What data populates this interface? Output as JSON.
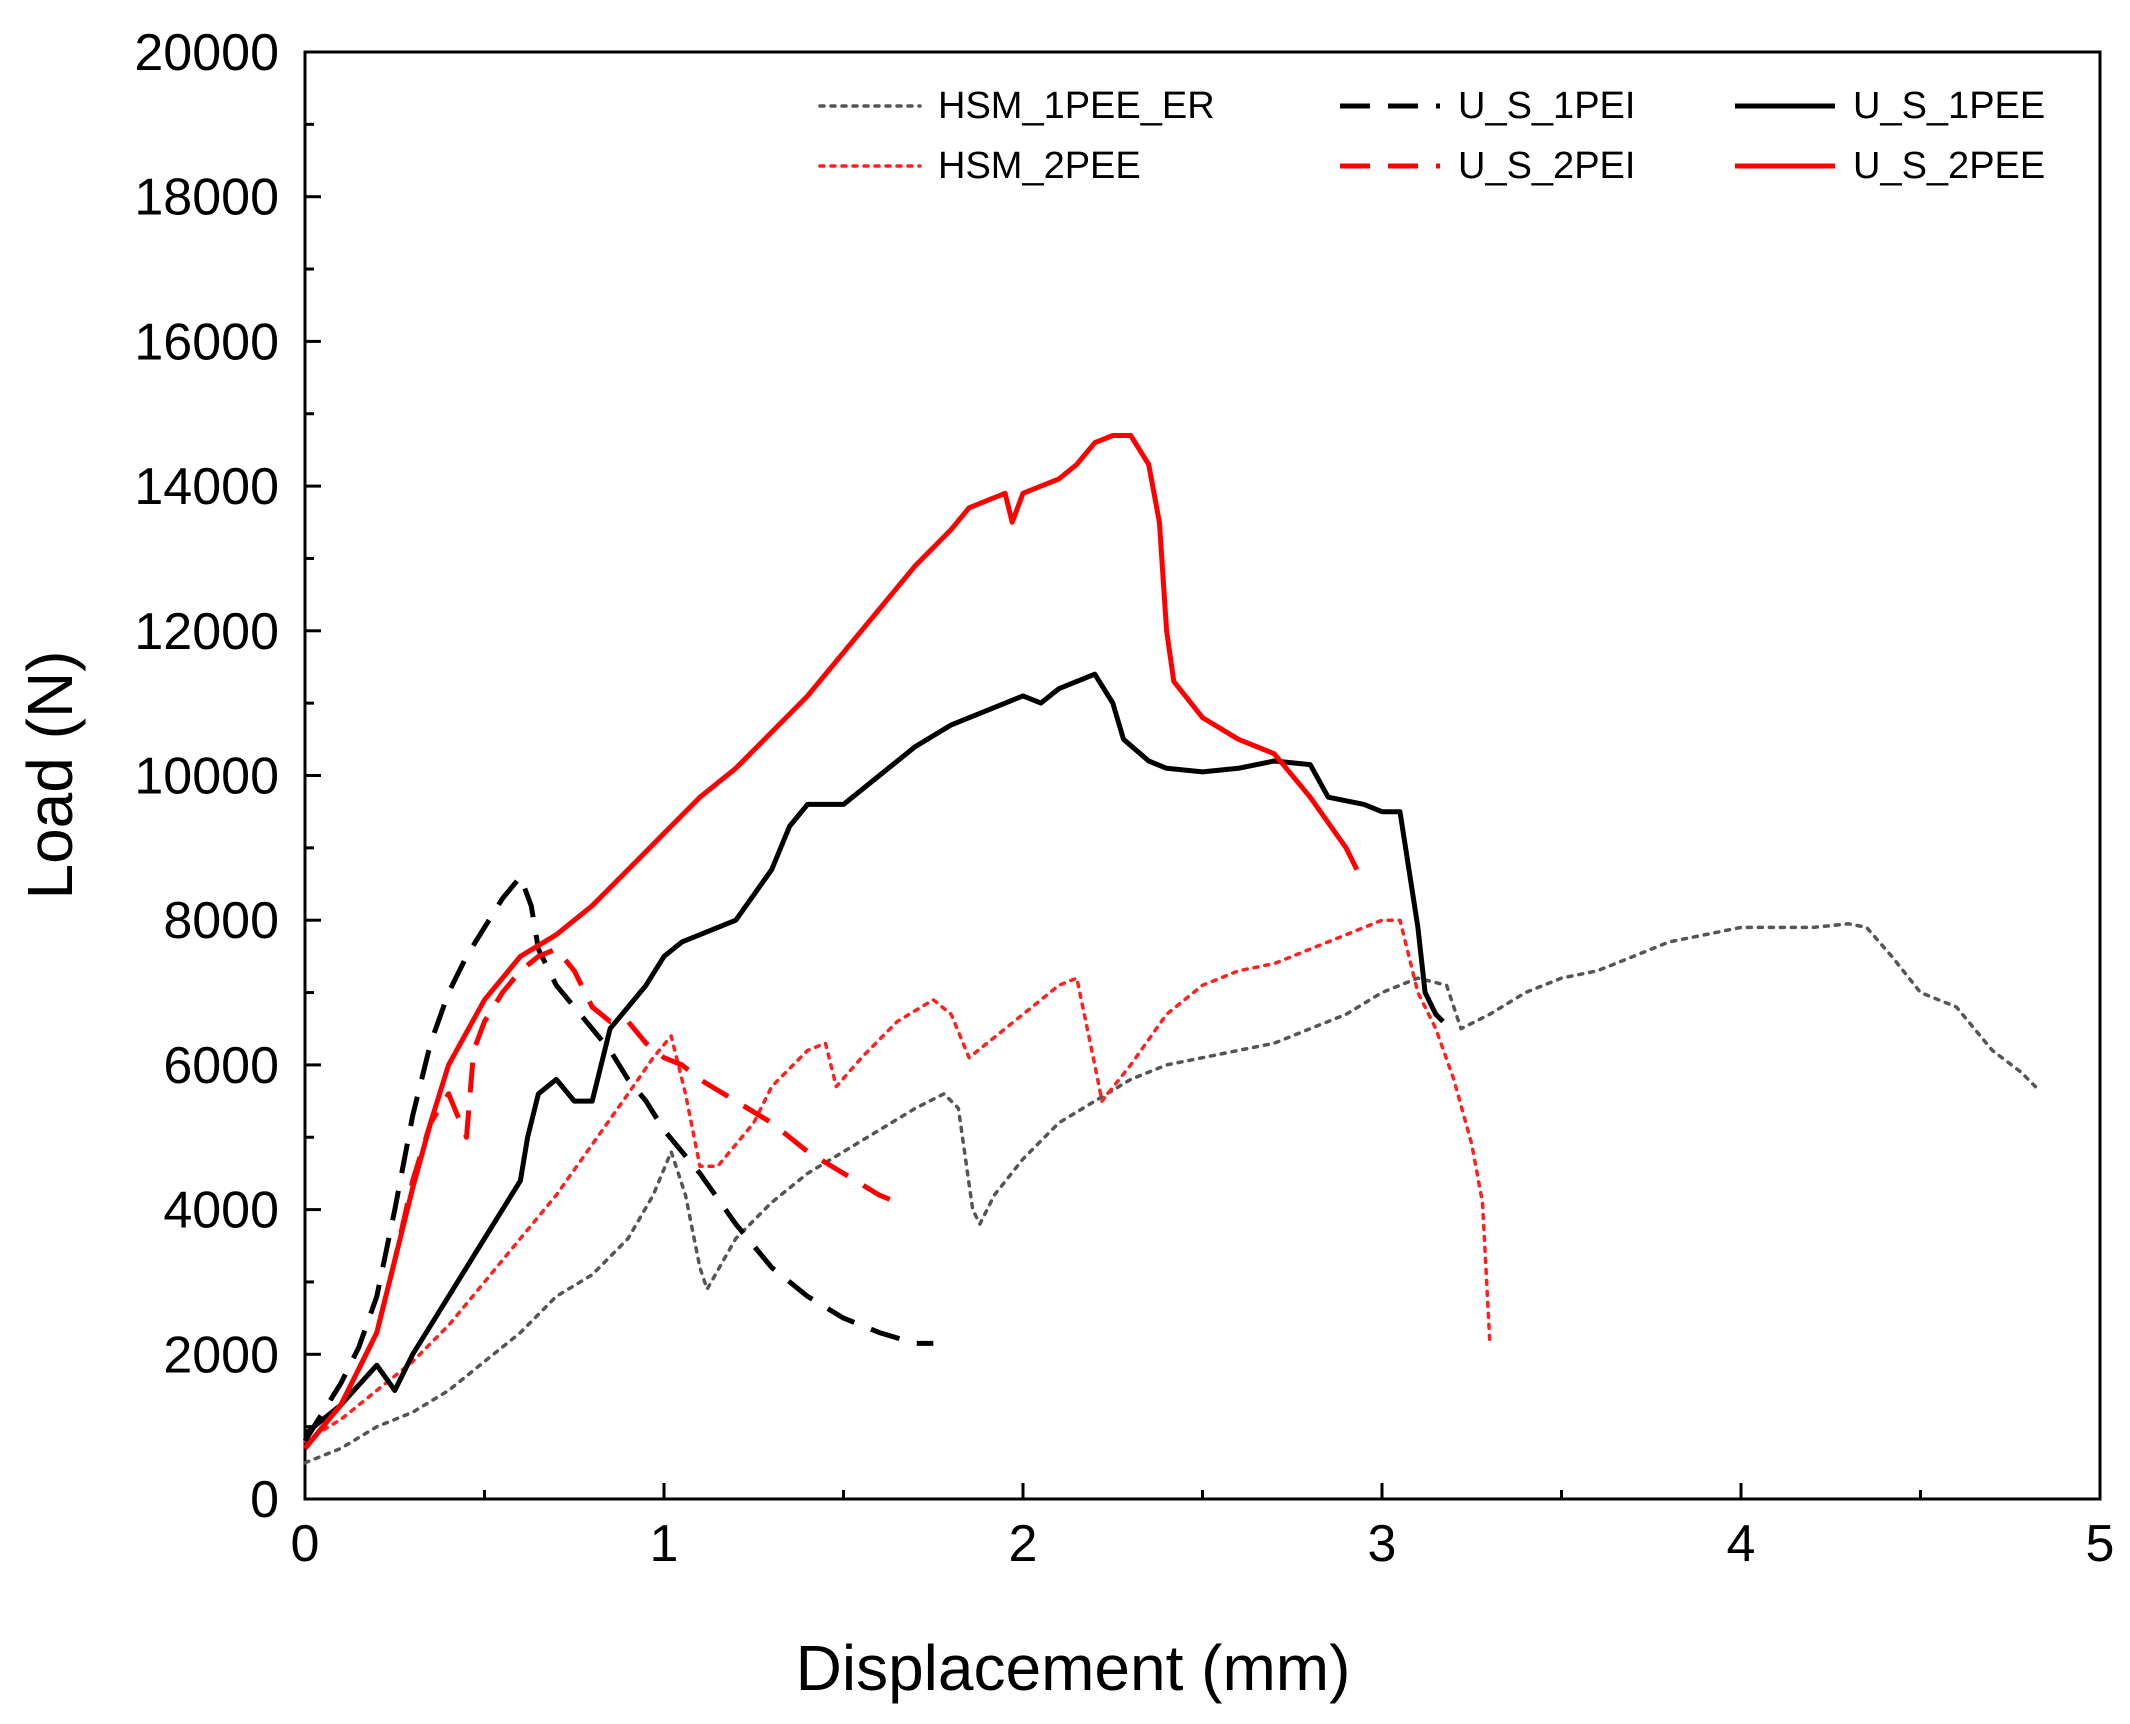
{
  "chart_data": {
    "type": "line",
    "title": "",
    "xlabel": "Displacement (mm)",
    "ylabel": "Load (N)",
    "xlim": [
      0,
      5
    ],
    "ylim": [
      0,
      20000
    ],
    "x_ticks": [
      0,
      1,
      2,
      3,
      4,
      5
    ],
    "y_ticks": [
      0,
      2000,
      4000,
      6000,
      8000,
      10000,
      12000,
      14000,
      16000,
      18000,
      20000
    ],
    "x_tick_labels": [
      "0",
      "1",
      "2",
      "3",
      "4",
      "5"
    ],
    "y_tick_labels": [
      "0",
      "2000",
      "4000",
      "6000",
      "8000",
      "10000",
      "12000",
      "14000",
      "16000",
      "18000",
      "20000"
    ],
    "grid": false,
    "legend_position": "top-right",
    "series": [
      {
        "name": "HSM_1PEE_ER",
        "color": "#555555",
        "dash": "dotted",
        "points": [
          [
            0,
            500
          ],
          [
            0.1,
            700
          ],
          [
            0.2,
            1000
          ],
          [
            0.3,
            1200
          ],
          [
            0.4,
            1500
          ],
          [
            0.5,
            1900
          ],
          [
            0.6,
            2300
          ],
          [
            0.7,
            2800
          ],
          [
            0.8,
            3100
          ],
          [
            0.9,
            3600
          ],
          [
            0.97,
            4200
          ],
          [
            1.02,
            4800
          ],
          [
            1.06,
            4200
          ],
          [
            1.1,
            3200
          ],
          [
            1.12,
            2900
          ],
          [
            1.2,
            3600
          ],
          [
            1.3,
            4100
          ],
          [
            1.4,
            4500
          ],
          [
            1.5,
            4800
          ],
          [
            1.6,
            5100
          ],
          [
            1.7,
            5400
          ],
          [
            1.78,
            5600
          ],
          [
            1.82,
            5400
          ],
          [
            1.86,
            4000
          ],
          [
            1.88,
            3800
          ],
          [
            1.92,
            4200
          ],
          [
            2.0,
            4700
          ],
          [
            2.1,
            5200
          ],
          [
            2.2,
            5500
          ],
          [
            2.3,
            5800
          ],
          [
            2.4,
            6000
          ],
          [
            2.5,
            6100
          ],
          [
            2.6,
            6200
          ],
          [
            2.7,
            6300
          ],
          [
            2.8,
            6500
          ],
          [
            2.9,
            6700
          ],
          [
            3.0,
            7000
          ],
          [
            3.1,
            7200
          ],
          [
            3.18,
            7100
          ],
          [
            3.22,
            6500
          ],
          [
            3.3,
            6700
          ],
          [
            3.4,
            7000
          ],
          [
            3.5,
            7200
          ],
          [
            3.6,
            7300
          ],
          [
            3.7,
            7500
          ],
          [
            3.8,
            7700
          ],
          [
            3.9,
            7800
          ],
          [
            4.0,
            7900
          ],
          [
            4.1,
            7900
          ],
          [
            4.2,
            7900
          ],
          [
            4.3,
            7950
          ],
          [
            4.35,
            7900
          ],
          [
            4.42,
            7500
          ],
          [
            4.5,
            7000
          ],
          [
            4.6,
            6800
          ],
          [
            4.7,
            6200
          ],
          [
            4.78,
            5900
          ],
          [
            4.82,
            5700
          ]
        ]
      },
      {
        "name": "HSM_2PEE",
        "color": "#ff2020",
        "dash": "dotted",
        "points": [
          [
            0,
            800
          ],
          [
            0.1,
            1100
          ],
          [
            0.2,
            1500
          ],
          [
            0.3,
            1900
          ],
          [
            0.4,
            2400
          ],
          [
            0.5,
            3000
          ],
          [
            0.6,
            3600
          ],
          [
            0.7,
            4200
          ],
          [
            0.8,
            4900
          ],
          [
            0.9,
            5600
          ],
          [
            0.97,
            6100
          ],
          [
            1.02,
            6400
          ],
          [
            1.06,
            5600
          ],
          [
            1.1,
            4600
          ],
          [
            1.15,
            4600
          ],
          [
            1.25,
            5200
          ],
          [
            1.3,
            5700
          ],
          [
            1.4,
            6200
          ],
          [
            1.45,
            6300
          ],
          [
            1.48,
            5700
          ],
          [
            1.55,
            6100
          ],
          [
            1.65,
            6600
          ],
          [
            1.75,
            6900
          ],
          [
            1.8,
            6700
          ],
          [
            1.85,
            6100
          ],
          [
            1.9,
            6300
          ],
          [
            2.0,
            6700
          ],
          [
            2.1,
            7100
          ],
          [
            2.15,
            7200
          ],
          [
            2.2,
            6000
          ],
          [
            2.22,
            5500
          ],
          [
            2.3,
            6000
          ],
          [
            2.4,
            6700
          ],
          [
            2.5,
            7100
          ],
          [
            2.6,
            7300
          ],
          [
            2.7,
            7400
          ],
          [
            2.8,
            7600
          ],
          [
            2.9,
            7800
          ],
          [
            3.0,
            8000
          ],
          [
            3.05,
            8000
          ],
          [
            3.1,
            7000
          ],
          [
            3.15,
            6500
          ],
          [
            3.2,
            5800
          ],
          [
            3.25,
            4900
          ],
          [
            3.28,
            4100
          ],
          [
            3.3,
            2200
          ]
        ]
      },
      {
        "name": "U_S_1PEI",
        "color": "#000000",
        "dash": "dashed",
        "points": [
          [
            0,
            800
          ],
          [
            0.05,
            1200
          ],
          [
            0.1,
            1600
          ],
          [
            0.15,
            2100
          ],
          [
            0.2,
            2800
          ],
          [
            0.25,
            4000
          ],
          [
            0.3,
            5300
          ],
          [
            0.35,
            6300
          ],
          [
            0.4,
            7000
          ],
          [
            0.45,
            7500
          ],
          [
            0.5,
            7900
          ],
          [
            0.55,
            8300
          ],
          [
            0.6,
            8600
          ],
          [
            0.63,
            8200
          ],
          [
            0.65,
            7600
          ],
          [
            0.7,
            7100
          ],
          [
            0.75,
            6800
          ],
          [
            0.8,
            6500
          ],
          [
            0.85,
            6200
          ],
          [
            0.9,
            5800
          ],
          [
            0.95,
            5500
          ],
          [
            1.0,
            5100
          ],
          [
            1.1,
            4500
          ],
          [
            1.2,
            3800
          ],
          [
            1.3,
            3200
          ],
          [
            1.4,
            2800
          ],
          [
            1.5,
            2500
          ],
          [
            1.6,
            2300
          ],
          [
            1.7,
            2150
          ],
          [
            1.75,
            2150
          ]
        ]
      },
      {
        "name": "U_S_2PEI",
        "color": "#ff0000",
        "dash": "dashed",
        "points": [
          [
            0,
            700
          ],
          [
            0.05,
            1000
          ],
          [
            0.1,
            1300
          ],
          [
            0.15,
            1800
          ],
          [
            0.2,
            2300
          ],
          [
            0.25,
            3300
          ],
          [
            0.3,
            4400
          ],
          [
            0.35,
            5200
          ],
          [
            0.4,
            5600
          ],
          [
            0.45,
            5000
          ],
          [
            0.47,
            6200
          ],
          [
            0.5,
            6600
          ],
          [
            0.55,
            7000
          ],
          [
            0.6,
            7300
          ],
          [
            0.65,
            7500
          ],
          [
            0.7,
            7600
          ],
          [
            0.75,
            7300
          ],
          [
            0.8,
            6800
          ],
          [
            0.85,
            6600
          ],
          [
            0.9,
            6600
          ],
          [
            0.95,
            6300
          ],
          [
            1.0,
            6100
          ],
          [
            1.05,
            6000
          ],
          [
            1.1,
            5800
          ],
          [
            1.2,
            5500
          ],
          [
            1.3,
            5200
          ],
          [
            1.4,
            4800
          ],
          [
            1.5,
            4500
          ],
          [
            1.6,
            4200
          ],
          [
            1.65,
            4100
          ]
        ]
      },
      {
        "name": "U_S_1PEE",
        "color": "#000000",
        "dash": "solid",
        "points": [
          [
            0,
            900
          ],
          [
            0.1,
            1300
          ],
          [
            0.2,
            1850
          ],
          [
            0.25,
            1500
          ],
          [
            0.3,
            2000
          ],
          [
            0.4,
            2800
          ],
          [
            0.5,
            3600
          ],
          [
            0.6,
            4400
          ],
          [
            0.62,
            5000
          ],
          [
            0.65,
            5600
          ],
          [
            0.7,
            5800
          ],
          [
            0.75,
            5500
          ],
          [
            0.8,
            5500
          ],
          [
            0.85,
            6500
          ],
          [
            0.9,
            6800
          ],
          [
            0.95,
            7100
          ],
          [
            1.0,
            7500
          ],
          [
            1.05,
            7700
          ],
          [
            1.1,
            7800
          ],
          [
            1.2,
            8000
          ],
          [
            1.3,
            8700
          ],
          [
            1.35,
            9300
          ],
          [
            1.4,
            9600
          ],
          [
            1.5,
            9600
          ],
          [
            1.6,
            10000
          ],
          [
            1.7,
            10400
          ],
          [
            1.8,
            10700
          ],
          [
            1.9,
            10900
          ],
          [
            2.0,
            11100
          ],
          [
            2.05,
            11000
          ],
          [
            2.1,
            11200
          ],
          [
            2.15,
            11300
          ],
          [
            2.2,
            11400
          ],
          [
            2.25,
            11000
          ],
          [
            2.28,
            10500
          ],
          [
            2.35,
            10200
          ],
          [
            2.4,
            10100
          ],
          [
            2.5,
            10050
          ],
          [
            2.6,
            10100
          ],
          [
            2.7,
            10200
          ],
          [
            2.8,
            10150
          ],
          [
            2.85,
            9700
          ],
          [
            2.95,
            9600
          ],
          [
            3.0,
            9500
          ],
          [
            3.05,
            9500
          ],
          [
            3.1,
            7900
          ],
          [
            3.12,
            7000
          ],
          [
            3.15,
            6700
          ],
          [
            3.17,
            6600
          ]
        ]
      },
      {
        "name": "U_S_2PEE",
        "color": "#ff0000",
        "dash": "solid",
        "points": [
          [
            0,
            700
          ],
          [
            0.1,
            1300
          ],
          [
            0.2,
            2300
          ],
          [
            0.25,
            3300
          ],
          [
            0.3,
            4300
          ],
          [
            0.35,
            5200
          ],
          [
            0.4,
            6000
          ],
          [
            0.5,
            6900
          ],
          [
            0.6,
            7500
          ],
          [
            0.7,
            7800
          ],
          [
            0.8,
            8200
          ],
          [
            0.9,
            8700
          ],
          [
            1.0,
            9200
          ],
          [
            1.1,
            9700
          ],
          [
            1.2,
            10100
          ],
          [
            1.3,
            10600
          ],
          [
            1.4,
            11100
          ],
          [
            1.5,
            11700
          ],
          [
            1.6,
            12300
          ],
          [
            1.7,
            12900
          ],
          [
            1.8,
            13400
          ],
          [
            1.85,
            13700
          ],
          [
            1.9,
            13800
          ],
          [
            1.95,
            13900
          ],
          [
            1.97,
            13500
          ],
          [
            2.0,
            13900
          ],
          [
            2.1,
            14100
          ],
          [
            2.15,
            14300
          ],
          [
            2.2,
            14600
          ],
          [
            2.25,
            14700
          ],
          [
            2.3,
            14700
          ],
          [
            2.35,
            14300
          ],
          [
            2.38,
            13500
          ],
          [
            2.4,
            12000
          ],
          [
            2.42,
            11300
          ],
          [
            2.5,
            10800
          ],
          [
            2.6,
            10500
          ],
          [
            2.7,
            10300
          ],
          [
            2.8,
            9700
          ],
          [
            2.9,
            9000
          ],
          [
            2.93,
            8700
          ]
        ]
      }
    ]
  }
}
